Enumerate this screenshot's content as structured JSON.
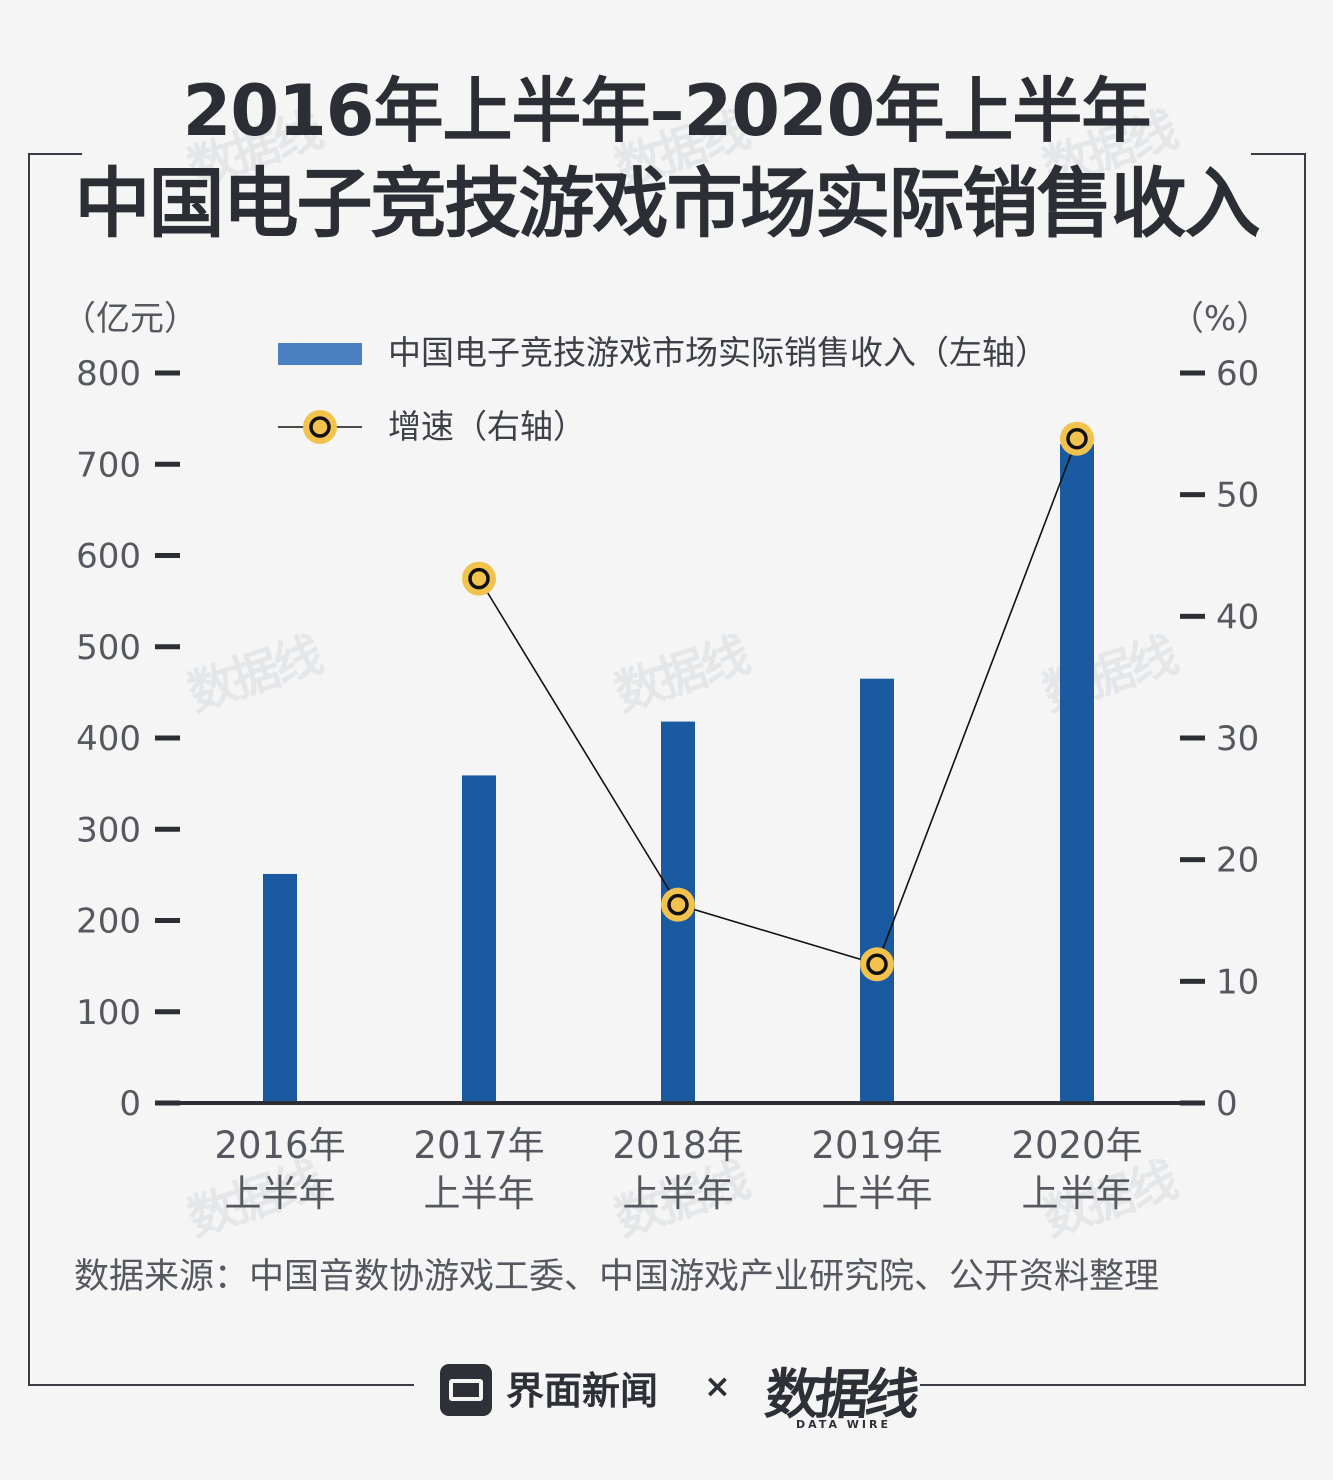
{
  "title_line1": "2016年上半年–2020年上半年",
  "title_line2": "中国电子竞技游戏市场实际销售收入",
  "source": "数据来源：中国音数协游戏工委、中国游戏产业研究院、公开资料整理",
  "footer": {
    "brand": "界面新闻",
    "separator": "×",
    "partner": "数据线",
    "partner_sub": "DATA WIRE"
  },
  "watermark": "数据线",
  "colors": {
    "bar": "#1a5aa0",
    "legend_bar": "#4a7fc1",
    "line": "#111111",
    "marker_fill": "#f2c24f",
    "marker_ring": "#111111",
    "axis": "#2b2e35"
  },
  "chart_data": {
    "type": "bar",
    "title": "2016年上半年–2020年上半年 中国电子竞技游戏市场实际销售收入",
    "categories": [
      [
        "2016年",
        "上半年"
      ],
      [
        "2017年",
        "上半年"
      ],
      [
        "2018年",
        "上半年"
      ],
      [
        "2019年",
        "上半年"
      ],
      [
        "2020年",
        "上半年"
      ]
    ],
    "left_axis": {
      "unit": "（亿元）",
      "ylim": [
        0,
        800
      ],
      "ticks": [
        0,
        100,
        200,
        300,
        400,
        500,
        600,
        700,
        800
      ]
    },
    "right_axis": {
      "unit": "（%）",
      "ylim": [
        0,
        60
      ],
      "ticks": [
        0,
        10,
        20,
        30,
        40,
        50,
        60
      ]
    },
    "series": [
      {
        "name": "中国电子竞技游戏市场实际销售收入（左轴）",
        "type": "bar",
        "axis": "left",
        "values": [
          251,
          359,
          418,
          465,
          722
        ]
      },
      {
        "name": "增速（右轴）",
        "type": "line",
        "axis": "right",
        "values": [
          null,
          43.1,
          16.3,
          11.4,
          54.6
        ]
      }
    ],
    "legend_position": "top"
  }
}
